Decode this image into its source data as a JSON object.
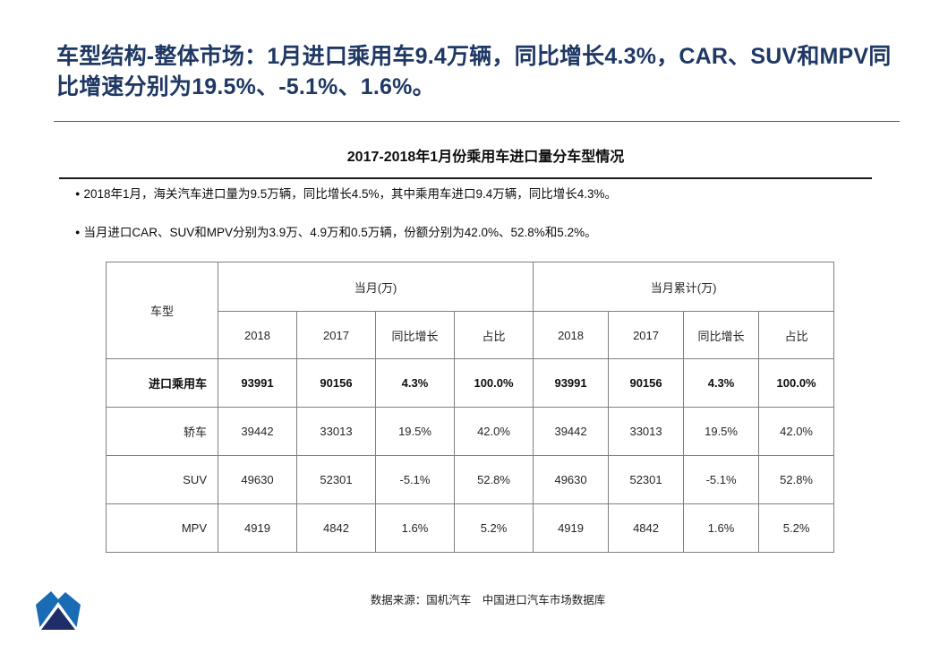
{
  "slide": {
    "title": "车型结构-整体市场：1月进口乘用车9.4万辆，同比增长4.3%，CAR、SUV和MPV同比增速分别为19.5%、-5.1%、1.6%。",
    "subtitle": "2017-2018年1月份乘用车进口量分车型情况",
    "bullet_glyph": "●",
    "bullets": [
      "2018年1月，海关汽车进口量为9.5万辆，同比增长4.5%，其中乘用车进口9.4万辆，同比增长4.3%。",
      "当月进口CAR、SUV和MPV分别为3.9万、4.9万和0.5万辆，份额分别为42.0%、52.8%和5.2%。"
    ],
    "footer": "数据来源：国机汽车　中国进口汽车市场数据库"
  },
  "colors": {
    "title_text": "#1F3864",
    "table_border": "#7F7F7F",
    "logo_blue": "#1A6BB5",
    "logo_navy": "#1F2D69"
  },
  "table": {
    "corner_header": "车型",
    "groups": [
      {
        "label": "当月(万)"
      },
      {
        "label": "当月累计(万)"
      }
    ],
    "sub_headers": [
      "2018",
      "2017",
      "同比增长",
      "占比"
    ],
    "rows": [
      {
        "label": "进口乘用车",
        "bold": true,
        "cells": [
          "93991",
          "90156",
          "4.3%",
          "100.0%",
          "93991",
          "90156",
          "4.3%",
          "100.0%"
        ]
      },
      {
        "label": "轿车",
        "bold": false,
        "cells": [
          "39442",
          "33013",
          "19.5%",
          "42.0%",
          "39442",
          "33013",
          "19.5%",
          "42.0%"
        ]
      },
      {
        "label": "SUV",
        "bold": false,
        "cells": [
          "49630",
          "52301",
          "-5.1%",
          "52.8%",
          "49630",
          "52301",
          "-5.1%",
          "52.8%"
        ]
      },
      {
        "label": "MPV",
        "bold": false,
        "cells": [
          "4919",
          "4842",
          "1.6%",
          "5.2%",
          "4919",
          "4842",
          "1.6%",
          "5.2%"
        ]
      }
    ]
  }
}
